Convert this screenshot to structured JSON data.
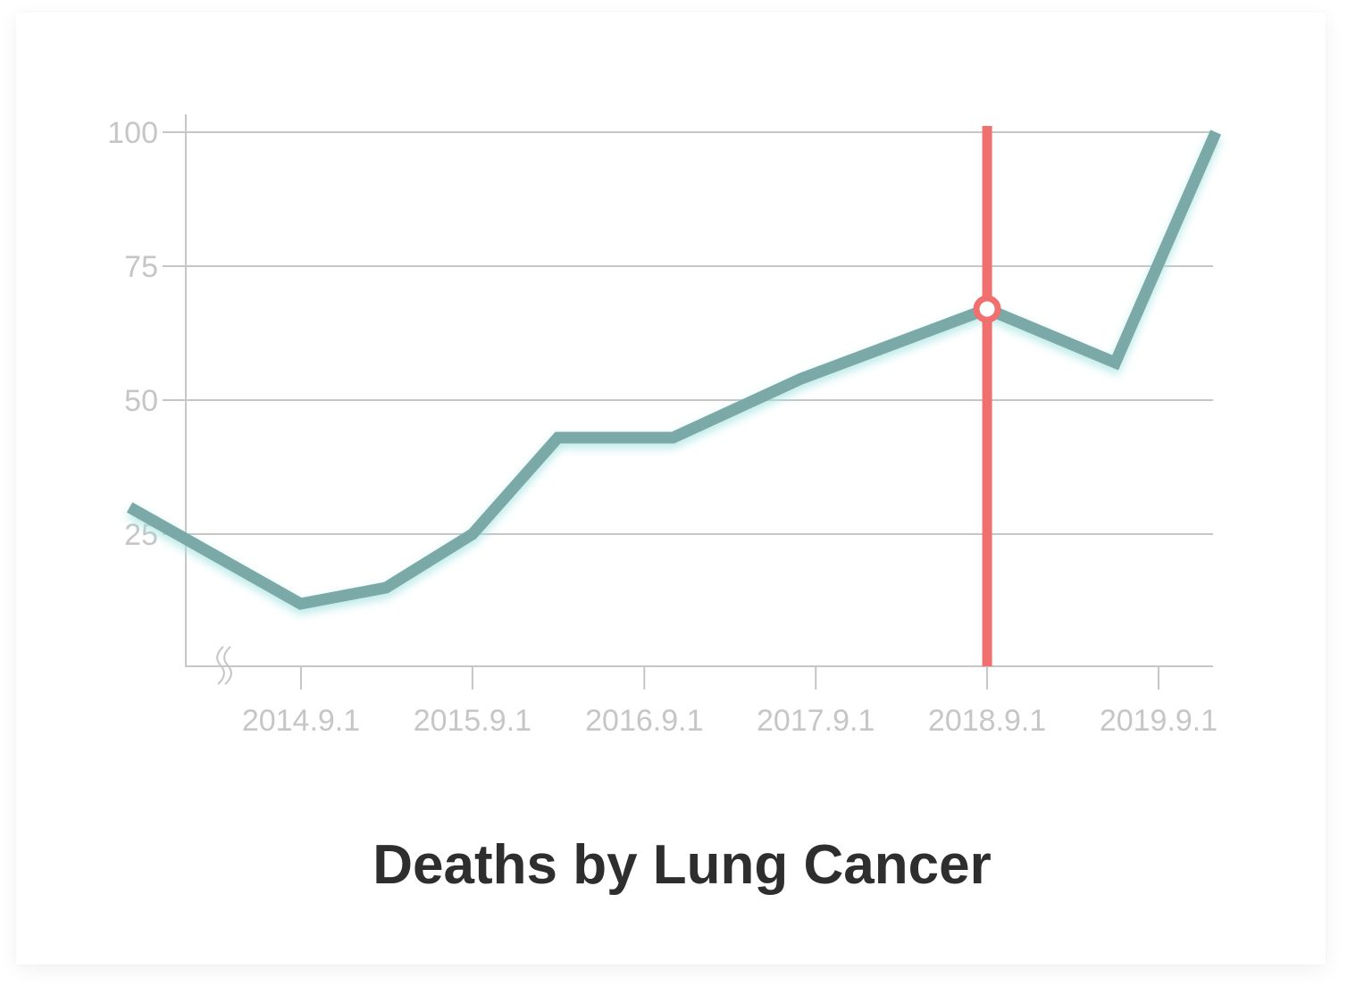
{
  "chart_data": {
    "type": "line",
    "title": "Deaths by Lung Cancer",
    "xlabel": "",
    "ylabel": "",
    "ylim": [
      0,
      100
    ],
    "y_ticks": [
      25,
      50,
      75,
      100
    ],
    "x_axis_break": true,
    "grid": "horizontal",
    "x_range": [
      "2013-09-01",
      "2020-01-01"
    ],
    "x_ticks": [
      {
        "date": "2014-09-01",
        "label": "2014.9.1"
      },
      {
        "date": "2015-09-01",
        "label": "2015.9.1"
      },
      {
        "date": "2016-09-01",
        "label": "2016.9.1"
      },
      {
        "date": "2017-09-01",
        "label": "2017.9.1"
      },
      {
        "date": "2018-09-01",
        "label": "2018.9.1"
      },
      {
        "date": "2019-09-01",
        "label": "2019.9.1"
      }
    ],
    "series": [
      {
        "color": "#7aa9a7",
        "glow_color": "#9fe3df",
        "points": [
          {
            "x": "2013-09-01",
            "y": 30
          },
          {
            "x": "2014-08-31",
            "y": 12
          },
          {
            "x": "2015-03-01",
            "y": 15
          },
          {
            "x": "2015-09-01",
            "y": 25
          },
          {
            "x": "2016-03-01",
            "y": 43
          },
          {
            "x": "2016-11-01",
            "y": 43
          },
          {
            "x": "2017-08-01",
            "y": 54
          },
          {
            "x": "2018-09-01",
            "y": 67
          },
          {
            "x": "2019-06-01",
            "y": 57
          },
          {
            "x": "2020-01-01",
            "y": 100
          }
        ]
      }
    ],
    "cursor": {
      "date": "2018-09-01",
      "value": 67,
      "color": "#f07070"
    }
  },
  "colors": {
    "grid": "#c6c6c6",
    "axis": "#c6c6c6",
    "title": "#2e2e2e"
  }
}
